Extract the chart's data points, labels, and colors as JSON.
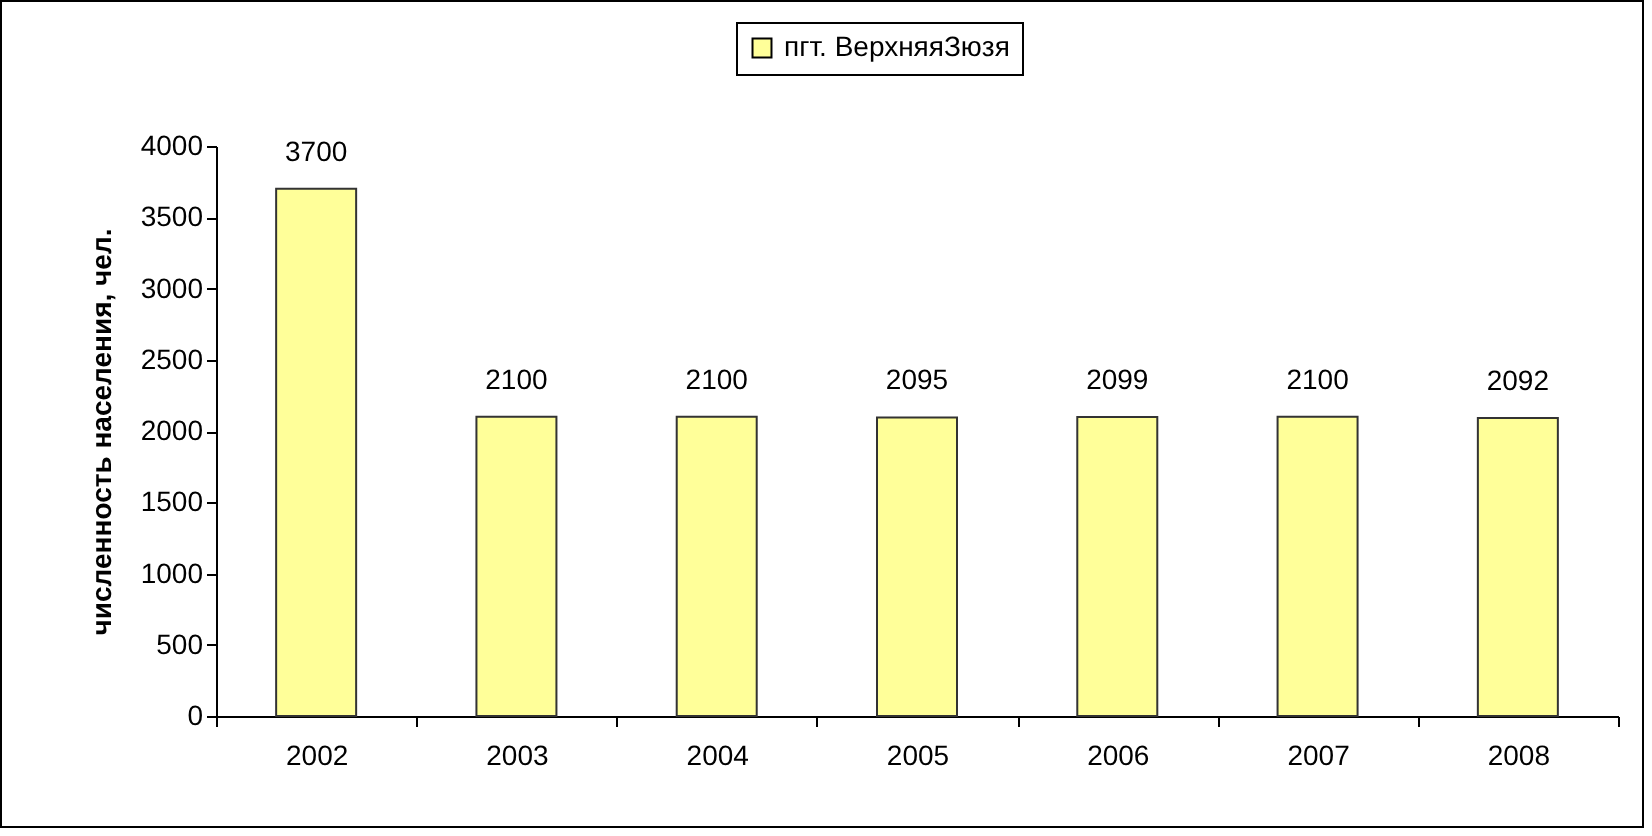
{
  "chart_data": {
    "type": "bar",
    "ylabel": "численность населения, чел.",
    "categories": [
      "2002",
      "2003",
      "2004",
      "2005",
      "2006",
      "2007",
      "2008"
    ],
    "series": [
      {
        "name": "пгт. ВерхняяЗюзя",
        "color": "#ffff99",
        "values": [
          3700,
          2100,
          2100,
          2095,
          2099,
          2100,
          2092
        ]
      }
    ],
    "ylim": [
      0,
      4000
    ],
    "yticks": [
      0,
      500,
      1000,
      1500,
      2000,
      2500,
      3000,
      3500,
      4000
    ],
    "data_labels": true,
    "legend": "top"
  }
}
